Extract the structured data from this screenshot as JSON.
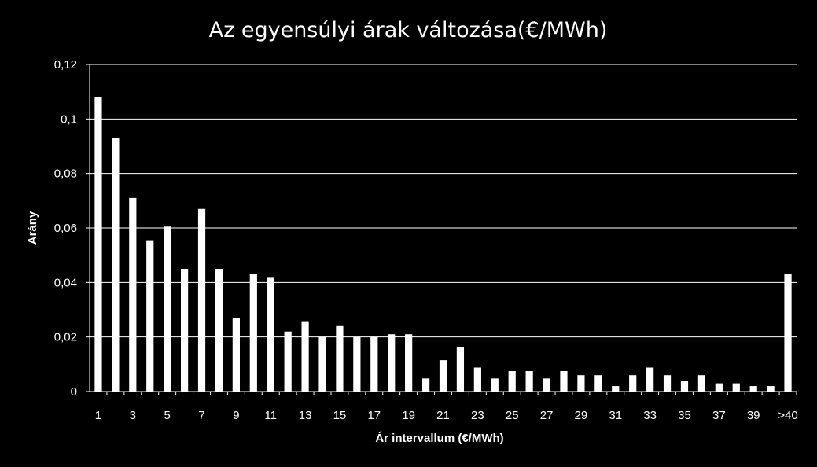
{
  "chart_data": {
    "type": "bar",
    "title": "Az egyensúlyi árak változása(€/MWh)",
    "xlabel": "Ár intervallum (€/MWh)",
    "ylabel": "Arány",
    "ylim": [
      0,
      0.12
    ],
    "y_ticks": [
      0,
      0.02,
      0.04,
      0.06,
      0.08,
      0.1,
      0.12
    ],
    "y_tick_labels": [
      "0",
      "0,02",
      "0,04",
      "0,06",
      "0,08",
      "0,1",
      "0,12"
    ],
    "categories": [
      "1",
      "2",
      "3",
      "4",
      "5",
      "6",
      "7",
      "8",
      "9",
      "10",
      "11",
      "12",
      "13",
      "14",
      "15",
      "16",
      "17",
      "18",
      "19",
      "20",
      "21",
      "22",
      "23",
      "24",
      "25",
      "26",
      "27",
      "28",
      "29",
      "30",
      "31",
      "32",
      "33",
      "34",
      "35",
      "36",
      "37",
      "38",
      "39",
      "40",
      ">40"
    ],
    "x_tick_labels": [
      "1",
      "",
      "3",
      "",
      "5",
      "",
      "7",
      "",
      "9",
      "",
      "11",
      "",
      "13",
      "",
      "15",
      "",
      "17",
      "",
      "19",
      "",
      "21",
      "",
      "23",
      "",
      "25",
      "",
      "27",
      "",
      "29",
      "",
      "31",
      "",
      "33",
      "",
      "35",
      "",
      "37",
      "",
      "39",
      "",
      ">40"
    ],
    "values": [
      0.108,
      0.093,
      0.071,
      0.0555,
      0.0605,
      0.045,
      0.067,
      0.045,
      0.027,
      0.043,
      0.042,
      0.022,
      0.0258,
      0.02,
      0.024,
      0.02,
      0.02,
      0.021,
      0.021,
      0.0048,
      0.0115,
      0.0162,
      0.0088,
      0.0048,
      0.0075,
      0.0075,
      0.0048,
      0.0075,
      0.006,
      0.006,
      0.002,
      0.006,
      0.0088,
      0.006,
      0.004,
      0.006,
      0.003,
      0.003,
      0.002,
      0.002,
      0.043
    ],
    "grid": true,
    "legend": false,
    "colors": {
      "background": "#000000",
      "bar": "#ffffff",
      "grid": "#ffffff",
      "axis": "#ffffff",
      "text": "#ffffff"
    }
  }
}
